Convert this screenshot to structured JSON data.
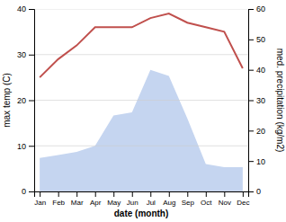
{
  "chart_data": {
    "type": "line",
    "categories": [
      "Jan",
      "Feb",
      "Mar",
      "Apr",
      "May",
      "Jun",
      "Jul",
      "Aug",
      "Sep",
      "Oct",
      "Nov",
      "Dec"
    ],
    "series": [
      {
        "type": "area",
        "color": "#c5d5f0",
        "axis": "y2",
        "values": [
          11,
          12,
          13,
          15,
          25,
          26,
          40,
          38,
          24,
          9,
          8,
          8
        ]
      },
      {
        "type": "line",
        "color": "#c0504d",
        "values": [
          25,
          29,
          32,
          36,
          36,
          36,
          38,
          39,
          37,
          36,
          35,
          27
        ]
      }
    ],
    "xlabel": "date (month)",
    "ylabel": "max temp (C)",
    "y2label": "med. precipitation (kg/m2)",
    "ylim": [
      0,
      40
    ],
    "yticks": [
      0,
      10,
      20,
      30,
      40
    ],
    "y2lim": [
      0,
      60
    ],
    "y2ticks": [
      0,
      10,
      20,
      30,
      40,
      50,
      60
    ],
    "grid": true
  }
}
